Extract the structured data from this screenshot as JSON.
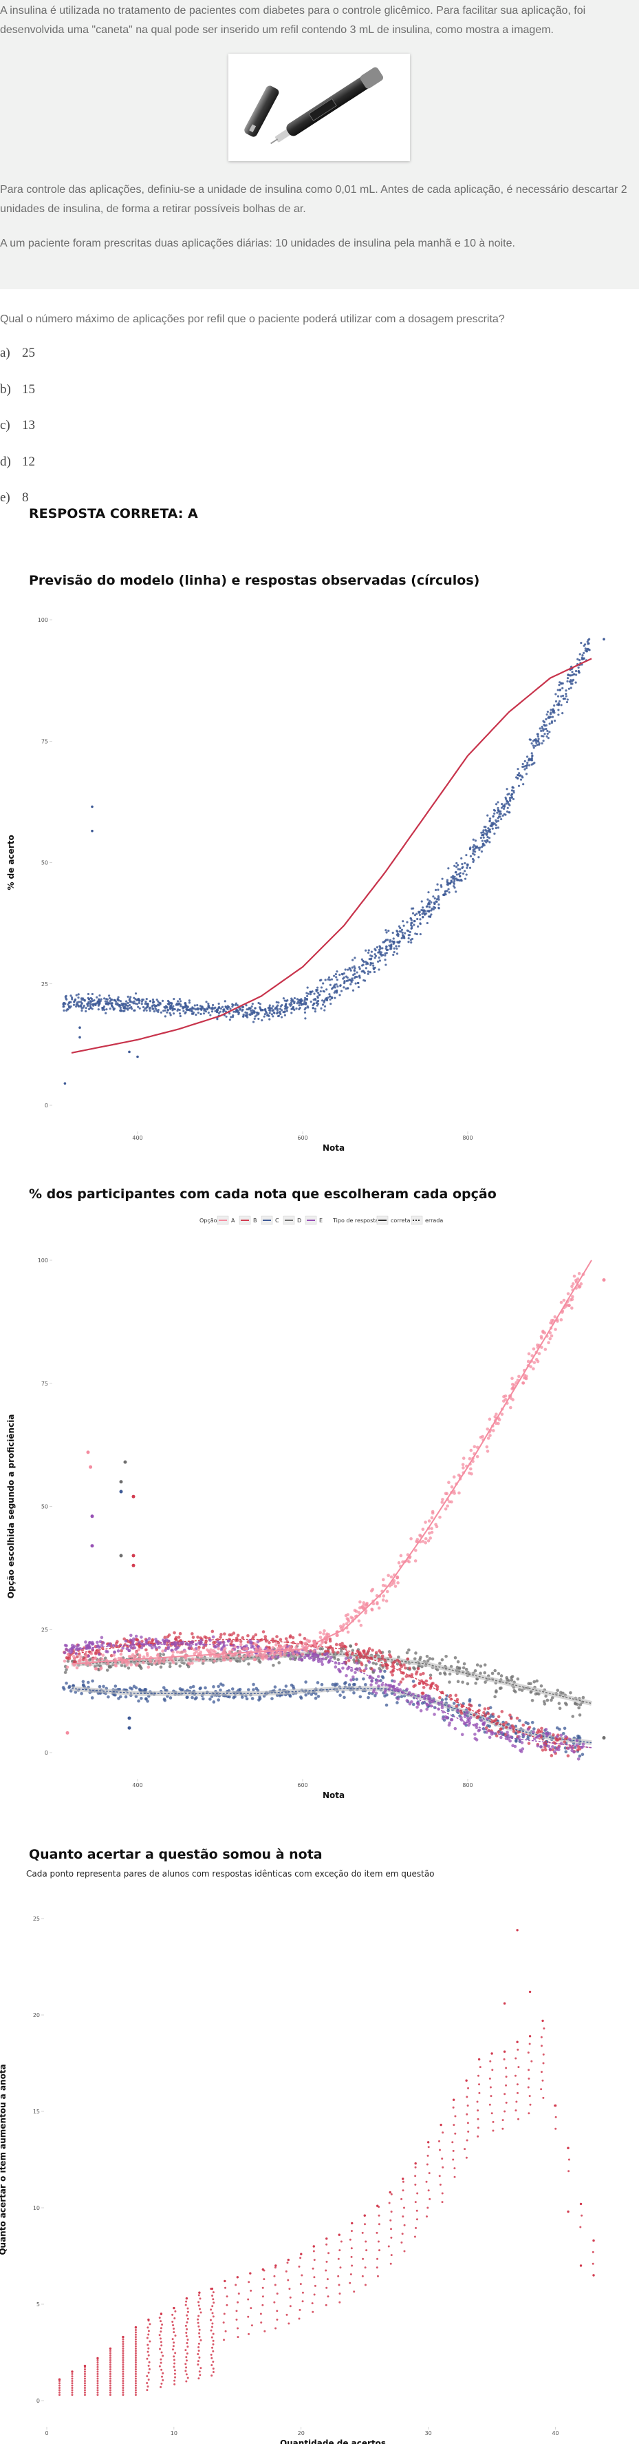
{
  "question": {
    "intro": "A insulina é utilizada no tratamento de pacientes com diabetes para o controle glicêmico. Para facilitar sua aplicação, foi desenvolvida uma \"caneta\" na qual pode ser inserido um refil contendo 3 mL de insulina, como mostra a imagem.",
    "paragraph2": "Para controle das aplicações, definiu-se a unidade de insulina como 0,01 mL. Antes de cada aplicação, é necessário descartar 2 unidades de insulina, de forma a retirar possíveis bolhas de ar.",
    "paragraph3": "A um paciente foram prescritas duas aplicações diárias: 10 unidades de insulina pela manhã e 10 à noite.",
    "prompt": "Qual o número máximo de aplicações por refil que o paciente poderá utilizar com a dosagem prescrita?",
    "image": "insulin-pen-photo"
  },
  "options": [
    {
      "letter": "a)",
      "value": "25"
    },
    {
      "letter": "b)",
      "value": "15"
    },
    {
      "letter": "c)",
      "value": "13"
    },
    {
      "letter": "d)",
      "value": "12"
    },
    {
      "letter": "e)",
      "value": "8"
    }
  ],
  "answer_text": "RESPOSTA CORRETA: A",
  "colors": {
    "curve": "#c8344c",
    "blue": "#3e5a96",
    "pink": "#f48ca0",
    "red": "#d23c50",
    "gray": "#6e6e6e",
    "purple": "#9650b4"
  },
  "chart_data": [
    {
      "type": "scatter",
      "title": "Previsão do modelo (linha) e respostas observadas (círculos)",
      "xlabel": "Nota",
      "ylabel": "% de acerto",
      "xticks": [
        "400",
        "600",
        "800"
      ],
      "yticks": [
        "0",
        "25",
        "50",
        "75",
        "100"
      ],
      "xlim": [
        300,
        975
      ],
      "ylim": [
        0,
        100
      ],
      "series": [
        {
          "role": "model-curve",
          "x": [
            320,
            400,
            450,
            500,
            550,
            600,
            650,
            700,
            750,
            800,
            850,
            900,
            950
          ],
          "values": [
            10.8,
            13.5,
            15.7,
            18.4,
            22.5,
            28.5,
            37,
            48,
            60,
            72,
            81,
            88,
            92
          ]
        },
        {
          "role": "observed",
          "x": [
            320,
            350,
            400,
            450,
            500,
            550,
            600,
            650,
            700,
            750,
            800,
            850,
            900,
            950
          ],
          "values": [
            21,
            21,
            21,
            20,
            19.5,
            19,
            21,
            25,
            32,
            40,
            50,
            63,
            80,
            96
          ]
        }
      ]
    },
    {
      "type": "scatter",
      "title": "% dos participantes com cada nota que escolheram cada opção",
      "xlabel": "Nota",
      "ylabel": "Opção escolhida segundo a proficiência",
      "xticks": [
        "400",
        "600",
        "800"
      ],
      "yticks": [
        "0",
        "25",
        "50",
        "75",
        "100"
      ],
      "xlim": [
        300,
        975
      ],
      "ylim": [
        0,
        100
      ],
      "legend": {
        "placement": "top",
        "option_title": "Opção",
        "options": [
          "A",
          "B",
          "C",
          "D",
          "E"
        ],
        "type_title": "Tipo de resposta",
        "types": [
          "correta",
          "errada"
        ]
      },
      "x": [
        320,
        400,
        500,
        550,
        600,
        650,
        700,
        750,
        800,
        850,
        900,
        950
      ],
      "series": [
        {
          "name": "A",
          "values": [
            18,
            19,
            20,
            20.5,
            21,
            25,
            33,
            45,
            58,
            72,
            86,
            100
          ]
        },
        {
          "name": "B",
          "values": [
            20,
            22,
            23,
            23,
            22,
            21,
            18,
            14,
            9,
            5,
            2,
            1
          ]
        },
        {
          "name": "C",
          "values": [
            13,
            12,
            12,
            12,
            12.5,
            13,
            13,
            11,
            8,
            5,
            3,
            2
          ]
        },
        {
          "name": "D",
          "values": [
            18,
            18.5,
            19,
            19.5,
            20,
            20,
            19,
            18,
            16,
            14,
            12,
            10
          ]
        },
        {
          "name": "E",
          "values": [
            21,
            22,
            22,
            21,
            20,
            18,
            14,
            10,
            6,
            3,
            2,
            1
          ]
        }
      ]
    },
    {
      "type": "scatter",
      "title": "Quanto acertar a questão somou à nota",
      "subtitle": "Cada ponto representa pares de alunos com respostas idênticas com exceção do item em questão",
      "xlabel": "Quantidade de acertos",
      "ylabel": "Quanto acertar o item aumentou a anota",
      "xticks": [
        "0",
        "10",
        "20",
        "30",
        "40"
      ],
      "yticks": [
        "0",
        "5",
        "10",
        "15",
        "20",
        "25"
      ],
      "xlim": [
        0,
        45
      ],
      "ylim": [
        0,
        25
      ],
      "series": [
        {
          "name": "pares",
          "x": [
            1,
            2,
            3,
            4,
            5,
            6,
            7,
            8,
            9,
            10,
            11,
            12,
            13,
            14,
            15,
            16,
            17,
            18,
            19,
            20,
            21,
            22,
            23,
            24,
            25,
            26,
            27,
            28,
            29,
            30,
            31,
            32,
            33,
            34,
            35,
            36,
            37,
            38,
            39,
            40,
            41,
            42,
            43
          ],
          "values": [
            1.1,
            1.5,
            1.8,
            2.2,
            2.7,
            3.3,
            3.8,
            4.2,
            4.5,
            4.8,
            5.3,
            5.6,
            5.8,
            6.2,
            6.4,
            6.6,
            6.8,
            7.0,
            7.3,
            7.6,
            8.0,
            8.4,
            8.6,
            9.2,
            9.6,
            10.1,
            10.8,
            11.5,
            12.3,
            13.4,
            14.3,
            15.6,
            16.6,
            17.7,
            18.0,
            18.1,
            18.6,
            18.9,
            19.7,
            15.3,
            13.1,
            10.2,
            8.3
          ]
        }
      ]
    }
  ]
}
